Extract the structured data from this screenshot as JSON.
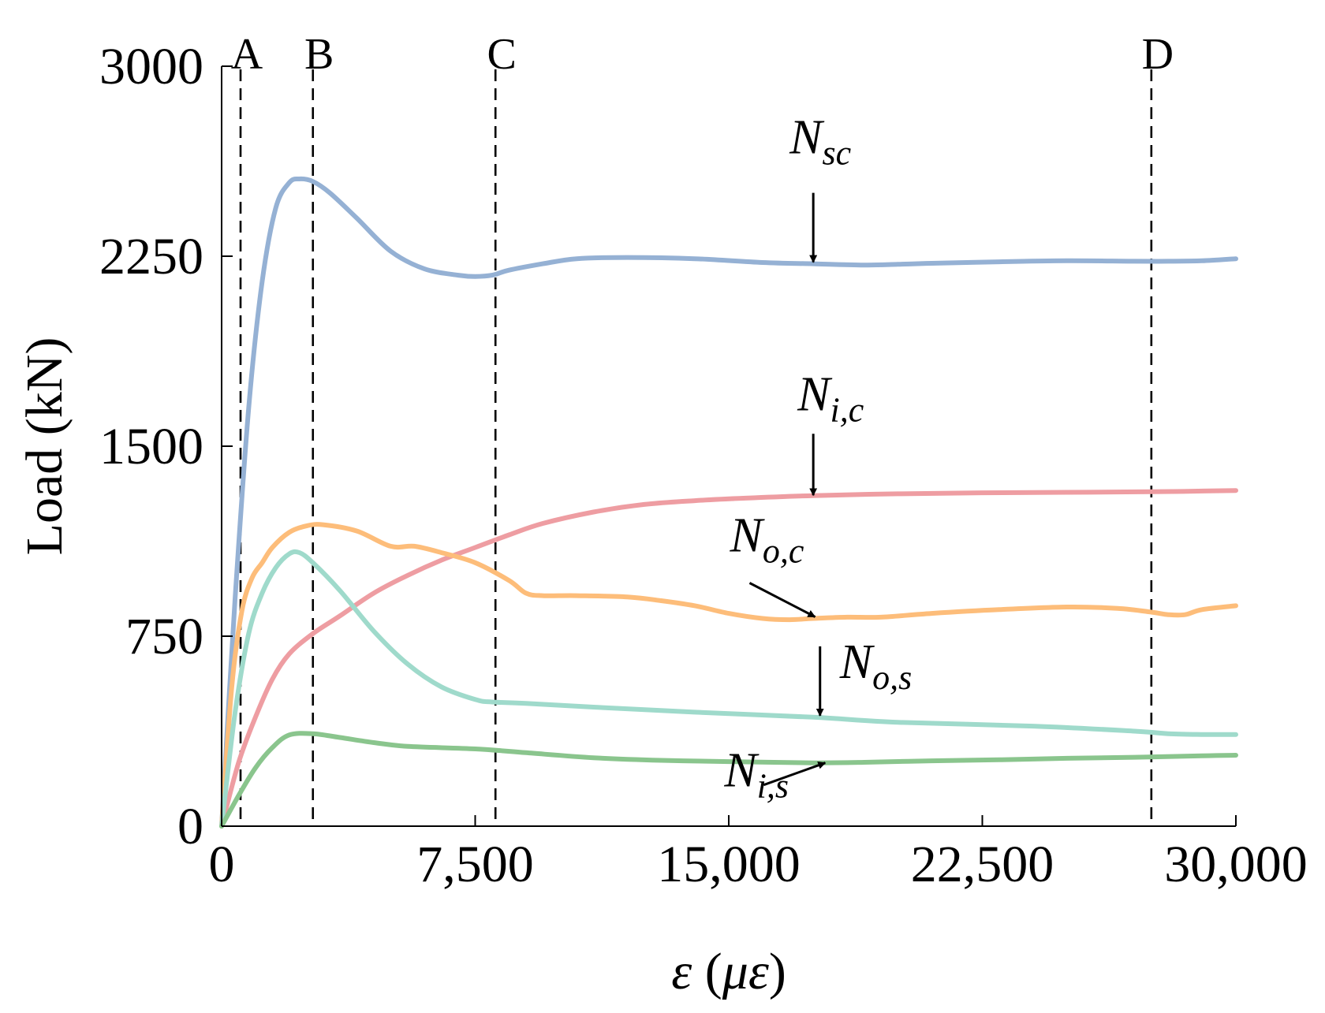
{
  "chart_data": {
    "type": "line",
    "xlabel": "ε (με)",
    "xlabel_parts": {
      "var": "ε",
      "open": " (",
      "unit": "με",
      "close": ")"
    },
    "ylabel": "Load (kN)",
    "xlim": [
      0,
      30000
    ],
    "ylim": [
      0,
      3000
    ],
    "xticks": [
      0,
      7500,
      15000,
      22500,
      30000
    ],
    "xtick_labels": [
      "0",
      "7,500",
      "15,000",
      "22,500",
      "30,000"
    ],
    "yticks": [
      0,
      750,
      1500,
      2250,
      3000
    ],
    "ytick_labels": [
      "0",
      "750",
      "1500",
      "2250",
      "3000"
    ],
    "grid": false,
    "markers": [
      {
        "label": "A",
        "x": 560
      },
      {
        "label": "B",
        "x": 2700
      },
      {
        "label": "C",
        "x": 8100
      },
      {
        "label": "D",
        "x": 27500
      }
    ],
    "series": [
      {
        "name": "N_sc",
        "main": "N",
        "sub": "sc",
        "color": "#95b1d4",
        "x": [
          0,
          400,
          800,
          1200,
          1600,
          2000,
          2300,
          2700,
          3200,
          4000,
          5000,
          6000,
          7000,
          7500,
          8000,
          8500,
          9500,
          10500,
          12000,
          14000,
          16000,
          17500,
          19000,
          20000,
          21000,
          23000,
          25000,
          27000,
          28000,
          29000,
          30000
        ],
        "y": [
          0,
          900,
          1650,
          2150,
          2440,
          2540,
          2555,
          2545,
          2500,
          2400,
          2270,
          2200,
          2175,
          2170,
          2175,
          2195,
          2220,
          2240,
          2245,
          2240,
          2225,
          2220,
          2215,
          2218,
          2222,
          2228,
          2232,
          2230,
          2230,
          2232,
          2240
        ]
      },
      {
        "name": "N_i,c",
        "main": "N",
        "sub": "i,c",
        "color": "#ee9da2",
        "x": [
          0,
          500,
          1000,
          1500,
          2000,
          2700,
          3500,
          4500,
          5500,
          6500,
          7500,
          8500,
          9500,
          11000,
          12500,
          14000,
          15500,
          17500,
          20000,
          22500,
          25000,
          27500,
          30000
        ],
        "y": [
          0,
          250,
          430,
          580,
          680,
          760,
          830,
          920,
          990,
          1050,
          1100,
          1150,
          1195,
          1240,
          1270,
          1285,
          1295,
          1305,
          1312,
          1316,
          1318,
          1320,
          1325
        ]
      },
      {
        "name": "N_o,c",
        "main": "N",
        "sub": "o,c",
        "color": "#fdbd7a",
        "x": [
          0,
          300,
          600,
          900,
          1200,
          1500,
          2000,
          2500,
          3000,
          4000,
          5000,
          5700,
          6500,
          7500,
          8500,
          9000,
          9500,
          10500,
          12000,
          13000,
          14000,
          15000,
          16000,
          16800,
          17500,
          18500,
          19500,
          21000,
          23000,
          25000,
          26500,
          27500,
          28000,
          28500,
          29000,
          30000
        ],
        "y": [
          0,
          550,
          850,
          980,
          1040,
          1100,
          1160,
          1185,
          1190,
          1165,
          1105,
          1105,
          1080,
          1040,
          970,
          920,
          910,
          910,
          905,
          890,
          870,
          840,
          820,
          815,
          820,
          825,
          825,
          840,
          855,
          865,
          860,
          845,
          835,
          835,
          855,
          870
        ]
      },
      {
        "name": "N_o,s",
        "main": "N",
        "sub": "o,s",
        "color": "#9fdacb",
        "x": [
          0,
          400,
          800,
          1200,
          1600,
          2000,
          2300,
          2700,
          3500,
          4500,
          5500,
          6500,
          7500,
          8000,
          9000,
          11000,
          14000,
          17500,
          20000,
          24000,
          27000,
          28000,
          29000,
          30000
        ],
        "y": [
          0,
          450,
          760,
          920,
          1020,
          1075,
          1080,
          1040,
          930,
          770,
          640,
          550,
          500,
          490,
          485,
          470,
          450,
          430,
          410,
          395,
          375,
          365,
          362,
          362
        ]
      },
      {
        "name": "N_i,s",
        "main": "N",
        "sub": "i,s",
        "color": "#8ac58d",
        "x": [
          0,
          500,
          1000,
          1500,
          2000,
          2700,
          3500,
          4500,
          5500,
          7500,
          9000,
          11000,
          13000,
          15000,
          17500,
          19000,
          21000,
          23000,
          25000,
          27000,
          29000,
          30000
        ],
        "y": [
          0,
          120,
          230,
          310,
          360,
          365,
          350,
          330,
          315,
          305,
          290,
          270,
          260,
          255,
          250,
          252,
          258,
          262,
          268,
          272,
          278,
          280
        ]
      }
    ],
    "annotations": [
      {
        "series": "N_sc",
        "main": "N",
        "sub": "sc",
        "arrow": "down",
        "x": 17500,
        "y": 2220
      },
      {
        "series": "N_i,c",
        "main": "N",
        "sub": "i,c",
        "arrow": "down",
        "x": 17500,
        "y": 1300
      },
      {
        "series": "N_o,c",
        "main": "N",
        "sub": "o,c",
        "arrow": "diagonal-down-right",
        "x": 17600,
        "y": 820
      },
      {
        "series": "N_o,s",
        "main": "N",
        "sub": "o,s",
        "arrow": "down",
        "x": 17700,
        "y": 430
      },
      {
        "series": "N_i,s",
        "main": "N",
        "sub": "i,s",
        "arrow": "diagonal-up-right",
        "x": 17900,
        "y": 250
      }
    ]
  }
}
